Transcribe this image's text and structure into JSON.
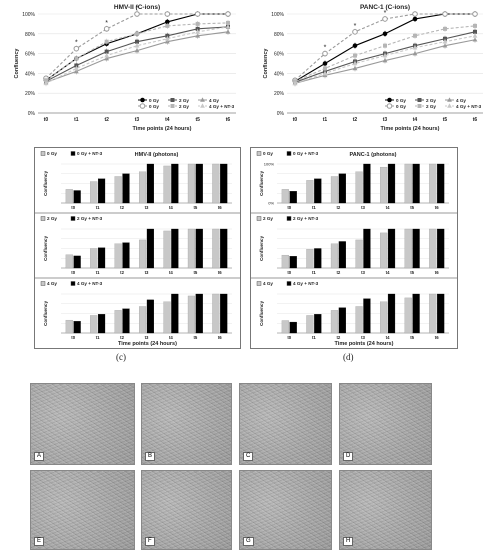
{
  "chart_data": [
    {
      "type": "line",
      "title": "HMV-II (C-ions)",
      "xlabel": "Time points (24 hours)",
      "ylabel": "Confluency",
      "categories": [
        "t0",
        "t1",
        "t2",
        "t3",
        "t4",
        "t5",
        "t6"
      ],
      "ylim": [
        0,
        100
      ],
      "yticks": [
        "0%",
        "20%",
        "40%",
        "60%",
        "80%",
        "100%"
      ],
      "grid": true,
      "legend_position": "bottom-right",
      "series": [
        {
          "name": "0 Gy",
          "values": [
            33,
            55,
            70,
            80,
            92,
            100,
            100
          ],
          "color": "#000000",
          "dash": false,
          "marker": "circle-filled"
        },
        {
          "name": "2 Gy",
          "values": [
            32,
            48,
            62,
            72,
            78,
            85,
            87
          ],
          "color": "#555555",
          "dash": false,
          "marker": "square"
        },
        {
          "name": "4 Gy",
          "values": [
            31,
            42,
            55,
            63,
            72,
            78,
            82
          ],
          "color": "#999999",
          "dash": false,
          "marker": "triangle"
        },
        {
          "name": "0 Gy",
          "values": [
            35,
            65,
            85,
            100,
            100,
            100,
            100
          ],
          "color": "#9a9a9a",
          "dash": true,
          "marker": "circle-open"
        },
        {
          "name": "2 Gy",
          "values": [
            33,
            55,
            72,
            80,
            88,
            90,
            91
          ],
          "color": "#b5b5b5",
          "dash": true,
          "marker": "square"
        },
        {
          "name": "4 Gy + NT-3",
          "values": [
            30,
            45,
            58,
            68,
            75,
            82,
            87
          ],
          "color": "#c8c8c8",
          "dash": true,
          "marker": "triangle"
        }
      ],
      "annotations": [
        "*",
        "*",
        "*"
      ]
    },
    {
      "type": "line",
      "title": "PANC-1 (C-ions)",
      "xlabel": "Time points (24 hours)",
      "ylabel": "Confluency",
      "categories": [
        "t0",
        "t1",
        "t2",
        "t3",
        "t4",
        "t5",
        "t6"
      ],
      "ylim": [
        0,
        100
      ],
      "yticks": [
        "0%",
        "20%",
        "40%",
        "60%",
        "80%",
        "100%"
      ],
      "grid": true,
      "legend_position": "bottom-right",
      "series": [
        {
          "name": "0 Gy",
          "values": [
            32,
            50,
            68,
            80,
            95,
            100,
            100
          ],
          "color": "#000000",
          "dash": false,
          "marker": "circle-filled"
        },
        {
          "name": "2 Gy",
          "values": [
            31,
            42,
            52,
            60,
            68,
            75,
            82
          ],
          "color": "#555555",
          "dash": false,
          "marker": "square"
        },
        {
          "name": "4 Gy",
          "values": [
            30,
            38,
            45,
            53,
            60,
            68,
            74
          ],
          "color": "#999999",
          "dash": false,
          "marker": "triangle"
        },
        {
          "name": "0 Gy",
          "values": [
            33,
            60,
            82,
            95,
            100,
            100,
            100
          ],
          "color": "#9a9a9a",
          "dash": true,
          "marker": "circle-open"
        },
        {
          "name": "2 Gy",
          "values": [
            32,
            45,
            58,
            68,
            78,
            85,
            88
          ],
          "color": "#b5b5b5",
          "dash": true,
          "marker": "square"
        },
        {
          "name": "4 Gy + NT-3",
          "values": [
            30,
            40,
            50,
            58,
            66,
            72,
            78
          ],
          "color": "#c8c8c8",
          "dash": true,
          "marker": "triangle"
        }
      ],
      "annotations": [
        "*",
        "*",
        "*"
      ]
    },
    {
      "type": "bar",
      "title": "HMV-II (photons)",
      "xlabel": "Time points (24 hours)",
      "ylabel": "Confluency",
      "categories": [
        "t0",
        "t1",
        "t2",
        "t3",
        "t4",
        "t5",
        "t6"
      ],
      "panels": [
        {
          "series": [
            {
              "name": "0 Gy",
              "values": [
                35,
                55,
                68,
                80,
                95,
                100,
                100
              ]
            },
            {
              "name": "0 Gy + NT-3",
              "values": [
                32,
                62,
                75,
                100,
                100,
                100,
                100
              ]
            }
          ]
        },
        {
          "series": [
            {
              "name": "2 Gy",
              "values": [
                34,
                50,
                62,
                72,
                95,
                100,
                100
              ]
            },
            {
              "name": "2 Gy + NT-3",
              "values": [
                31,
                52,
                65,
                100,
                100,
                100,
                100
              ]
            }
          ]
        },
        {
          "series": [
            {
              "name": "4 Gy",
              "values": [
                33,
                45,
                58,
                68,
                80,
                95,
                100
              ]
            },
            {
              "name": "4 Gy + NT-3",
              "values": [
                30,
                48,
                62,
                85,
                100,
                100,
                100
              ]
            }
          ]
        }
      ]
    },
    {
      "type": "bar",
      "title": "PANC-1 (photons)",
      "xlabel": "Time points (24 hours)",
      "ylabel": "Confluency",
      "yticks_top": [
        "100%",
        "0%"
      ],
      "categories": [
        "t0",
        "t1",
        "t2",
        "t3",
        "t4",
        "t5",
        "t6"
      ],
      "panels": [
        {
          "series": [
            {
              "name": "0 Gy",
              "values": [
                35,
                58,
                68,
                80,
                92,
                100,
                100
              ]
            },
            {
              "name": "0 Gy + NT-3",
              "values": [
                30,
                62,
                75,
                100,
                100,
                100,
                100
              ]
            }
          ]
        },
        {
          "series": [
            {
              "name": "2 Gy",
              "values": [
                33,
                48,
                62,
                72,
                90,
                100,
                100
              ]
            },
            {
              "name": "2 Gy + NT-3",
              "values": [
                30,
                50,
                68,
                100,
                100,
                100,
                100
              ]
            }
          ]
        },
        {
          "series": [
            {
              "name": "4 Gy",
              "values": [
                32,
                45,
                58,
                68,
                80,
                90,
                100
              ]
            },
            {
              "name": "4 Gy + NT-3",
              "values": [
                28,
                48,
                65,
                88,
                100,
                100,
                100
              ]
            }
          ]
        }
      ]
    }
  ],
  "panel_labels": {
    "c": "(c)",
    "d": "(d)"
  },
  "micrographs": [
    "A",
    "B",
    "C",
    "D",
    "E",
    "F",
    "G",
    "H"
  ]
}
